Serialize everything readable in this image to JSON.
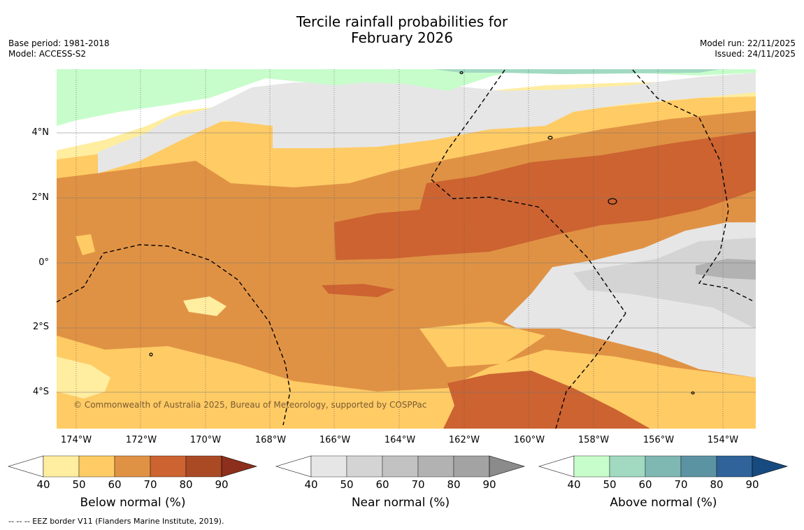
{
  "header": {
    "title_line1": "Tercile rainfall probabilities for",
    "title_line2": "February 2026",
    "base_period": "Base period: 1981-2018",
    "model": "Model: ACCESS-S2",
    "model_run": "Model run: 22/11/2025",
    "issued": "Issued: 24/11/2025"
  },
  "map": {
    "lat_labels": [
      "4°N",
      "2°N",
      "0°",
      "2°S",
      "4°S"
    ],
    "lon_labels": [
      "174°W",
      "172°W",
      "170°W",
      "168°W",
      "166°W",
      "164°W",
      "162°W",
      "160°W",
      "158°W",
      "156°W",
      "154°W"
    ],
    "copyright": "© Commonwealth of Australia 2025, Bureau of Meteorology, supported by COSPPac",
    "colors": {
      "below": [
        "#ffeda0",
        "#fecb65",
        "#e09244",
        "#cc6331",
        "#aa4a25",
        "#8c2f1c"
      ],
      "near": [
        "#e6e6e6",
        "#d4d4d4",
        "#c2c2c2",
        "#b2b2b2",
        "#a3a3a3",
        "#8b8b8b"
      ],
      "above": [
        "#c7fdcb",
        "#a1d9c1",
        "#7fb7b2",
        "#5c93a3",
        "#2f6399",
        "#174b7f"
      ]
    }
  },
  "colorbars": [
    {
      "title": "Below normal (%)",
      "ticks": [
        "40",
        "50",
        "60",
        "70",
        "80",
        "90"
      ]
    },
    {
      "title": "Near normal (%)",
      "ticks": [
        "40",
        "50",
        "60",
        "70",
        "80",
        "90"
      ]
    },
    {
      "title": "Above normal (%)",
      "ticks": [
        "40",
        "50",
        "60",
        "70",
        "80",
        "90"
      ]
    }
  ],
  "footnote": "-- -- -- EEZ border V11 (Flanders Marine Institute, 2019)."
}
